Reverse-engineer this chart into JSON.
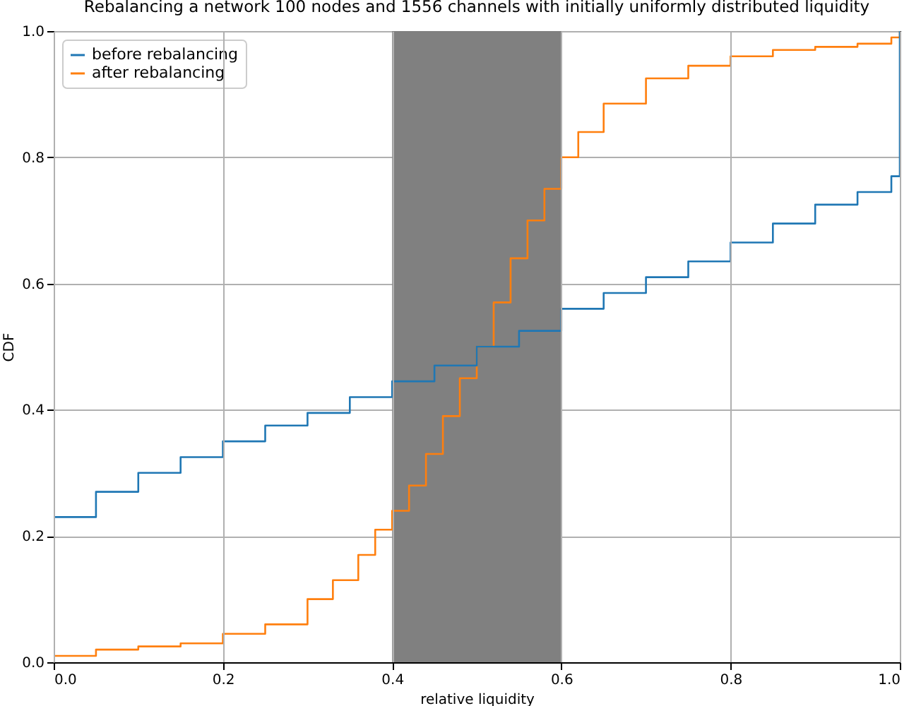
{
  "chart_data": {
    "type": "step",
    "title": "Rebalancing a network 100 nodes and 1556 channels with initially uniformly distributed liquidity",
    "xlabel": "relative liquidity",
    "ylabel": "CDF",
    "series": [
      {
        "name": "before rebalancing",
        "color": "#1f77b4",
        "x": [
          0,
          0.05,
          0.1,
          0.15,
          0.2,
          0.25,
          0.3,
          0.35,
          0.4,
          0.45,
          0.5,
          0.55,
          0.6,
          0.65,
          0.7,
          0.75,
          0.8,
          0.85,
          0.9,
          0.95,
          0.99,
          1.0
        ],
        "values": [
          0.23,
          0.27,
          0.3,
          0.325,
          0.35,
          0.375,
          0.395,
          0.42,
          0.445,
          0.47,
          0.5,
          0.525,
          0.56,
          0.585,
          0.61,
          0.635,
          0.665,
          0.695,
          0.725,
          0.745,
          0.77,
          1.0
        ]
      },
      {
        "name": "after rebalancing",
        "color": "#ff7f0e",
        "x": [
          0,
          0.05,
          0.1,
          0.15,
          0.2,
          0.25,
          0.3,
          0.33,
          0.36,
          0.38,
          0.4,
          0.42,
          0.44,
          0.46,
          0.48,
          0.5,
          0.52,
          0.54,
          0.56,
          0.58,
          0.6,
          0.62,
          0.65,
          0.7,
          0.75,
          0.8,
          0.85,
          0.9,
          0.95,
          0.99,
          1.0
        ],
        "values": [
          0.01,
          0.02,
          0.025,
          0.03,
          0.045,
          0.06,
          0.1,
          0.13,
          0.17,
          0.21,
          0.24,
          0.28,
          0.33,
          0.39,
          0.45,
          0.5,
          0.57,
          0.64,
          0.7,
          0.75,
          0.8,
          0.84,
          0.885,
          0.925,
          0.945,
          0.96,
          0.97,
          0.975,
          0.98,
          0.99,
          1.0
        ]
      }
    ],
    "bands": [
      {
        "axis": "x",
        "from": 0.4,
        "to": 0.6,
        "color": "#808080"
      }
    ],
    "xlim": [
      0,
      1
    ],
    "ylim": [
      0,
      1
    ],
    "xticks": [
      {
        "value": 0,
        "label": "0.0"
      },
      0.2,
      0.4,
      0.6,
      0.8,
      {
        "value": 1,
        "label": "1.0"
      }
    ],
    "yticks": [
      {
        "value": 0,
        "label": "0.0"
      },
      0.2,
      0.4,
      0.6,
      0.8,
      {
        "value": 1,
        "label": "1.0"
      }
    ],
    "grid": true,
    "legend": "top left"
  }
}
